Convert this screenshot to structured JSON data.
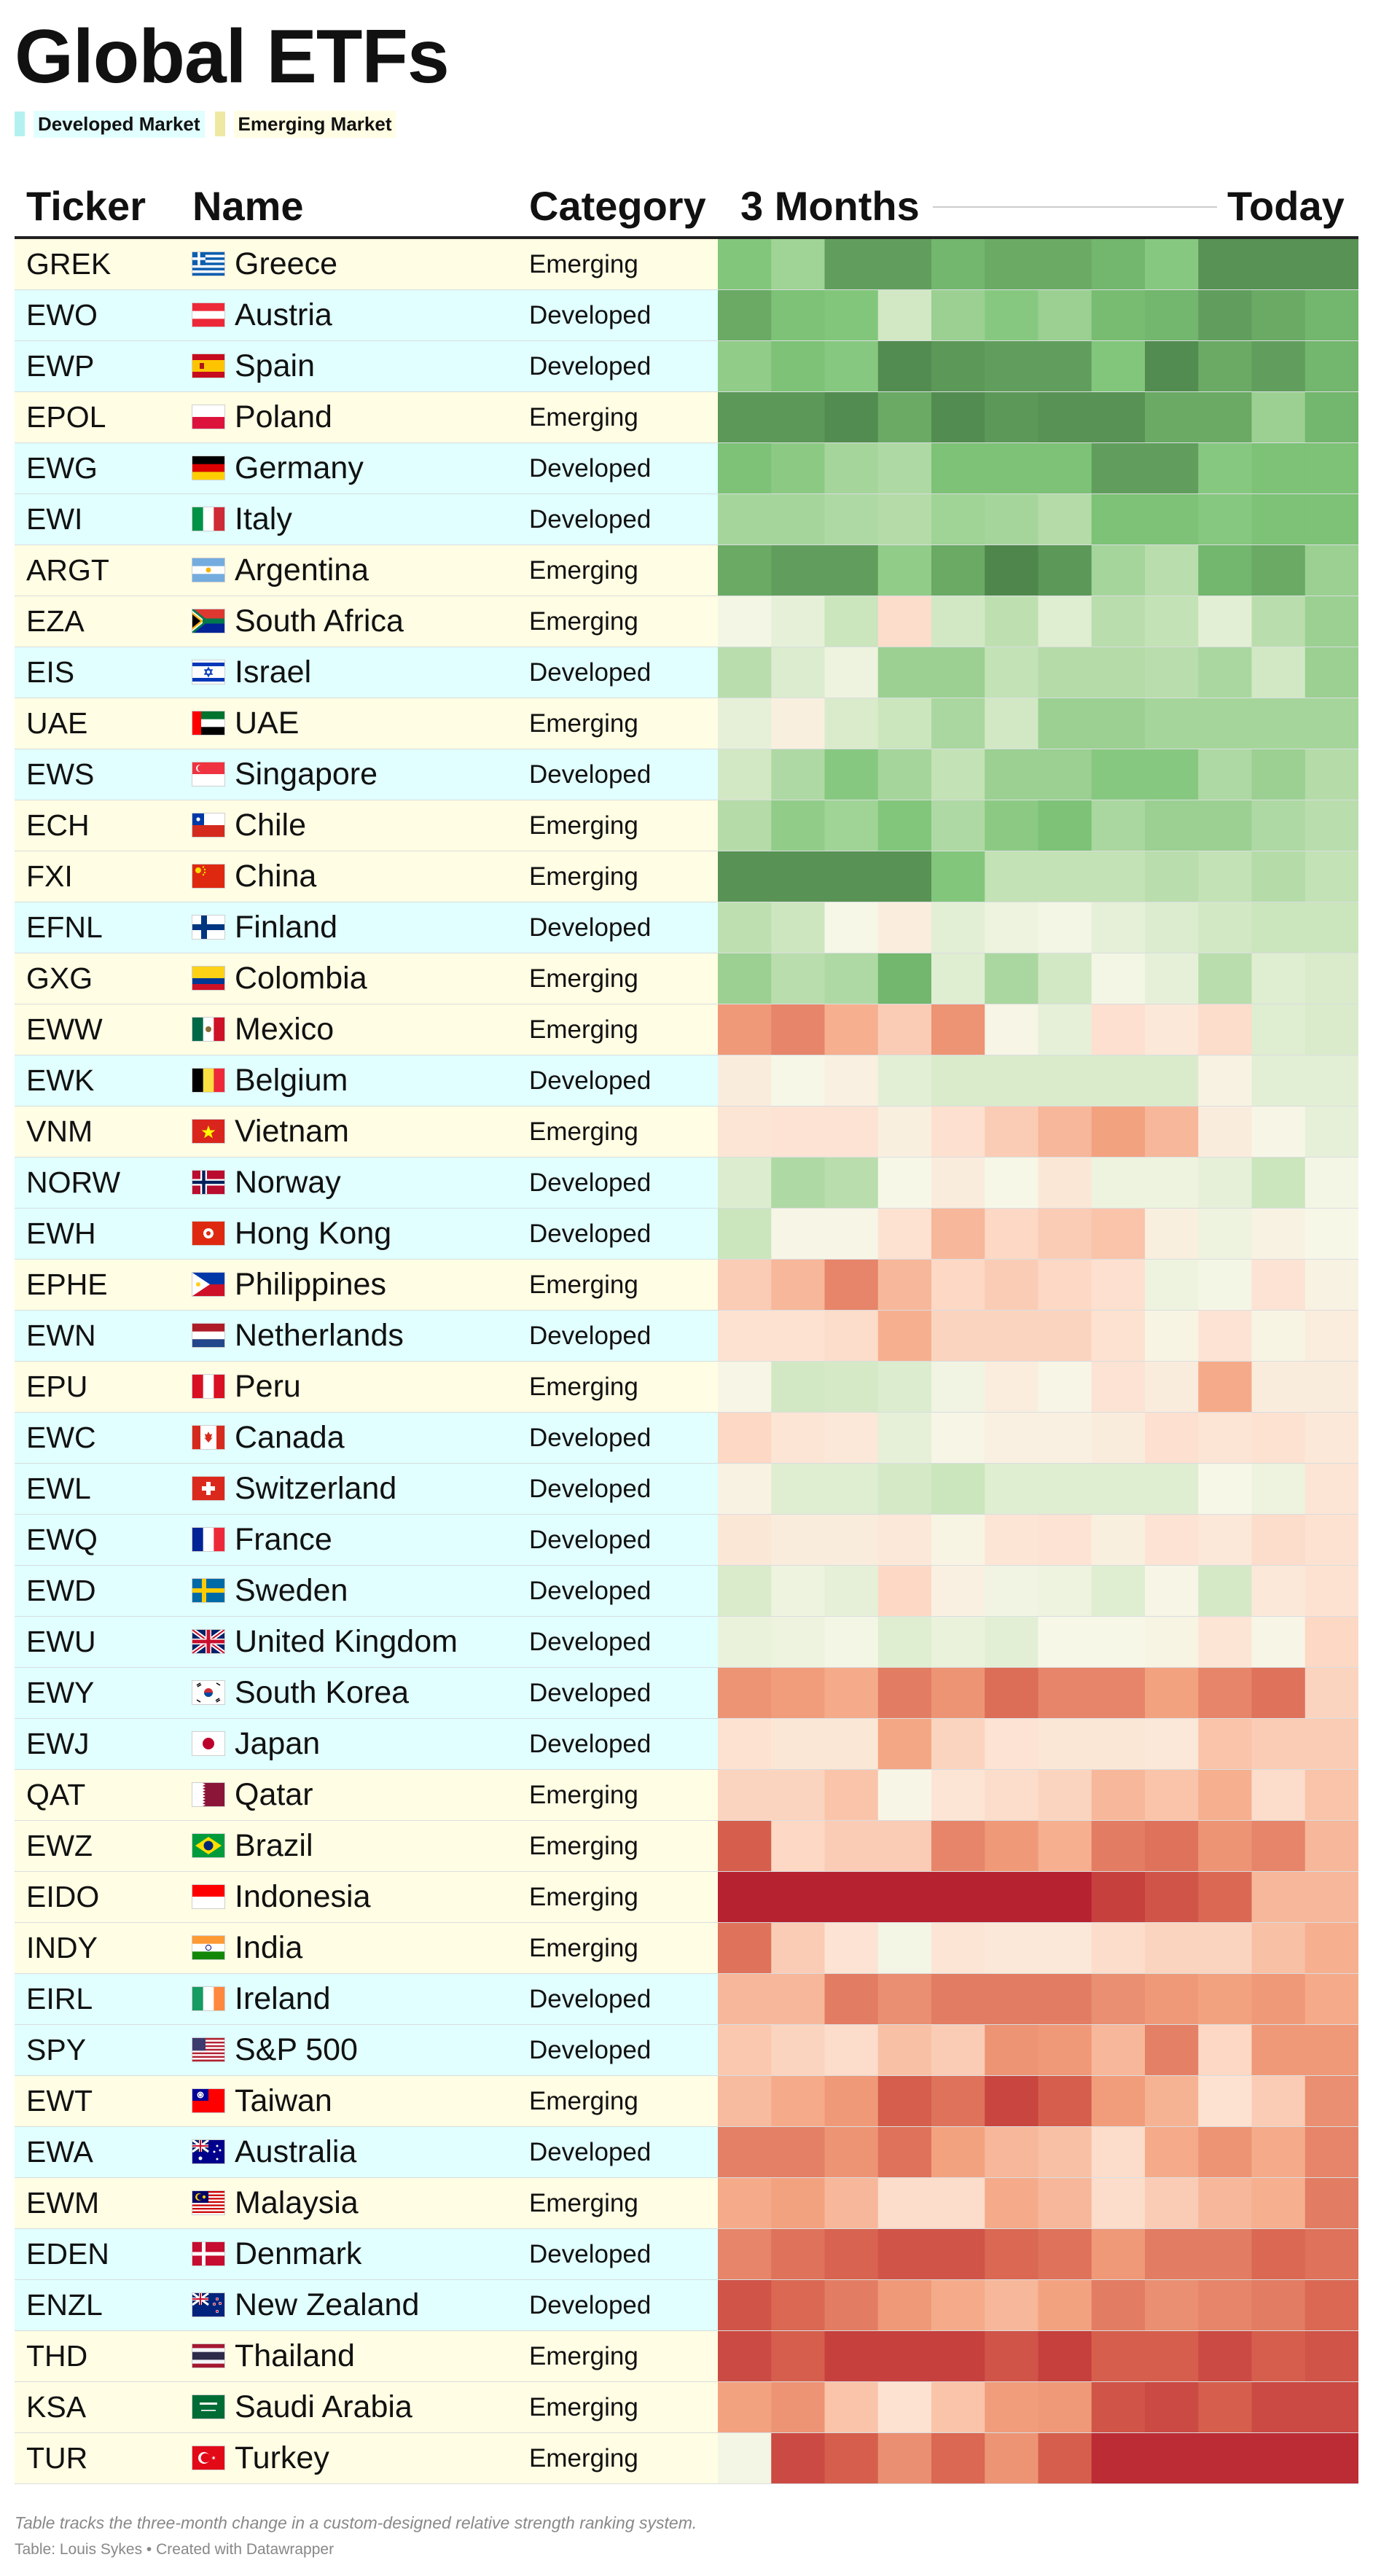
{
  "title": "Global ETFs",
  "legend": [
    {
      "label": "Developed Market",
      "color": "#b3f1f1",
      "bg": "#e0fffe"
    },
    {
      "label": "Emerging Market",
      "color": "#efe8a2",
      "bg": "#fffde3"
    }
  ],
  "header": {
    "ticker": "Ticker",
    "name": "Name",
    "category": "Category",
    "from": "3 Months",
    "to": "Today"
  },
  "footer": {
    "note": "Table tracks the three-month change in a custom-designed relative strength ranking system.",
    "credit": "Table: Louis Sykes • Created with Datawrapper"
  },
  "colors": {
    "developed_row": "#e0fffe",
    "emerging_row": "#fffde3",
    "scale": [
      "#b2182b",
      "#d6604d",
      "#f4a582",
      "#fde0cf",
      "#f7f7e8",
      "#c6e3b8",
      "#7ec478",
      "#3c6e3a"
    ]
  },
  "chart_data": {
    "type": "heatmap",
    "x_start_label": "3 Months",
    "x_end_label": "Today",
    "scale_range": [
      0,
      100
    ],
    "series": [
      {
        "ticker": "GREK",
        "name": "Greece",
        "category": "Emerging",
        "flag": "greece-flag",
        "values": [
          85,
          79,
          92,
          92,
          88,
          90,
          90,
          88,
          84,
          94,
          94,
          94
        ]
      },
      {
        "ticker": "EWO",
        "name": "Austria",
        "category": "Developed",
        "flag": "austria-flag",
        "values": [
          90,
          86,
          85,
          68,
          80,
          84,
          80,
          87,
          88,
          92,
          90,
          88
        ]
      },
      {
        "ticker": "EWP",
        "name": "Spain",
        "category": "Developed",
        "flag": "spain-flag",
        "values": [
          82,
          86,
          84,
          95,
          93,
          92,
          92,
          85,
          95,
          90,
          92,
          88
        ]
      },
      {
        "ticker": "EPOL",
        "name": "Poland",
        "category": "Emerging",
        "flag": "poland-flag",
        "values": [
          93,
          93,
          95,
          90,
          95,
          93,
          94,
          94,
          90,
          90,
          80,
          88
        ]
      },
      {
        "ticker": "EWG",
        "name": "Germany",
        "category": "Developed",
        "flag": "germany-flag",
        "values": [
          86,
          83,
          78,
          76,
          86,
          86,
          86,
          92,
          92,
          84,
          86,
          86
        ]
      },
      {
        "ticker": "EWI",
        "name": "Italy",
        "category": "Developed",
        "flag": "italy-flag",
        "values": [
          78,
          78,
          76,
          75,
          79,
          78,
          75,
          86,
          86,
          84,
          86,
          86
        ]
      },
      {
        "ticker": "ARGT",
        "name": "Argentina",
        "category": "Emerging",
        "flag": "argentina-flag",
        "values": [
          90,
          92,
          92,
          82,
          90,
          96,
          93,
          78,
          74,
          88,
          90,
          80
        ]
      },
      {
        "ticker": "EZA",
        "name": "South Africa",
        "category": "Emerging",
        "flag": "south-africa-flag",
        "values": [
          58,
          62,
          70,
          42,
          68,
          73,
          64,
          74,
          72,
          63,
          74,
          80
        ]
      },
      {
        "ticker": "EIS",
        "name": "Israel",
        "category": "Developed",
        "flag": "israel-flag",
        "values": [
          74,
          65,
          60,
          80,
          80,
          72,
          75,
          75,
          74,
          77,
          68,
          80
        ]
      },
      {
        "ticker": "UAE",
        "name": "UAE",
        "category": "Emerging",
        "flag": "uae-flag",
        "values": [
          62,
          52,
          66,
          70,
          77,
          68,
          80,
          80,
          78,
          78,
          78,
          78
        ]
      },
      {
        "ticker": "EWS",
        "name": "Singapore",
        "category": "Developed",
        "flag": "singapore-flag",
        "values": [
          68,
          76,
          84,
          78,
          72,
          80,
          80,
          84,
          84,
          76,
          80,
          75
        ]
      },
      {
        "ticker": "ECH",
        "name": "Chile",
        "category": "Emerging",
        "flag": "chile-flag",
        "values": [
          75,
          82,
          79,
          85,
          76,
          83,
          86,
          77,
          80,
          80,
          76,
          74
        ]
      },
      {
        "ticker": "FXI",
        "name": "China",
        "category": "Emerging",
        "flag": "china-flag",
        "values": [
          94,
          94,
          94,
          94,
          85,
          72,
          72,
          72,
          74,
          72,
          75,
          72
        ]
      },
      {
        "ticker": "EFNL",
        "name": "Finland",
        "category": "Developed",
        "flag": "finland-flag",
        "values": [
          73,
          69,
          57,
          51,
          63,
          60,
          58,
          62,
          65,
          68,
          70,
          70
        ]
      },
      {
        "ticker": "GXG",
        "name": "Colombia",
        "category": "Emerging",
        "flag": "colombia-flag",
        "values": [
          80,
          74,
          76,
          88,
          64,
          77,
          68,
          58,
          62,
          74,
          64,
          66
        ]
      },
      {
        "ticker": "EWW",
        "name": "Mexico",
        "category": "Emerging",
        "flag": "mexico-flag",
        "values": [
          26,
          22,
          31,
          38,
          25,
          56,
          62,
          43,
          48,
          42,
          64,
          66
        ]
      },
      {
        "ticker": "EWK",
        "name": "Belgium",
        "category": "Developed",
        "flag": "belgium-flag",
        "values": [
          50,
          57,
          53,
          63,
          66,
          66,
          66,
          66,
          66,
          54,
          63,
          63
        ]
      },
      {
        "ticker": "VNM",
        "name": "Vietnam",
        "category": "Emerging",
        "flag": "vietnam-flag",
        "values": [
          46,
          45,
          45,
          52,
          43,
          38,
          33,
          28,
          33,
          50,
          56,
          62
        ]
      },
      {
        "ticker": "NORW",
        "name": "Norway",
        "category": "Developed",
        "flag": "norway-flag",
        "values": [
          65,
          76,
          74,
          57,
          50,
          57,
          47,
          60,
          60,
          62,
          70,
          58
        ]
      },
      {
        "ticker": "EWH",
        "name": "Hong Kong",
        "category": "Developed",
        "flag": "hong-kong-flag",
        "values": [
          70,
          56,
          56,
          44,
          33,
          41,
          38,
          36,
          52,
          60,
          54,
          57
        ]
      },
      {
        "ticker": "EPHE",
        "name": "Philippines",
        "category": "Emerging",
        "flag": "philippines-flag",
        "values": [
          38,
          33,
          22,
          33,
          41,
          38,
          41,
          43,
          60,
          58,
          45,
          54
        ]
      },
      {
        "ticker": "EWN",
        "name": "Netherlands",
        "category": "Developed",
        "flag": "netherlands-flag",
        "values": [
          44,
          44,
          42,
          31,
          40,
          40,
          40,
          44,
          55,
          45,
          55,
          51
        ]
      },
      {
        "ticker": "EPU",
        "name": "Peru",
        "category": "Emerging",
        "flag": "peru-flag",
        "values": [
          56,
          68,
          67,
          65,
          59,
          51,
          56,
          45,
          50,
          30,
          50,
          50
        ]
      },
      {
        "ticker": "EWC",
        "name": "Canada",
        "category": "Developed",
        "flag": "canada-flag",
        "values": [
          41,
          46,
          48,
          62,
          56,
          53,
          53,
          50,
          43,
          46,
          44,
          48
        ]
      },
      {
        "ticker": "EWL",
        "name": "Switzerland",
        "category": "Developed",
        "flag": "switzerland-flag",
        "values": [
          54,
          64,
          64,
          67,
          70,
          64,
          64,
          64,
          64,
          57,
          60,
          46
        ]
      },
      {
        "ticker": "EWQ",
        "name": "France",
        "category": "Developed",
        "flag": "france-flag",
        "values": [
          47,
          50,
          50,
          48,
          55,
          46,
          45,
          52,
          45,
          48,
          42,
          44
        ]
      },
      {
        "ticker": "EWD",
        "name": "Sweden",
        "category": "Developed",
        "flag": "sweden-flag",
        "values": [
          66,
          60,
          62,
          41,
          53,
          59,
          60,
          64,
          56,
          67,
          48,
          44
        ]
      },
      {
        "ticker": "EWU",
        "name": "United Kingdom",
        "category": "Developed",
        "flag": "united-kingdom-flag",
        "values": [
          61,
          60,
          58,
          64,
          61,
          63,
          57,
          57,
          55,
          46,
          56,
          41
        ]
      },
      {
        "ticker": "EWY",
        "name": "South Korea",
        "category": "Developed",
        "flag": "south-korea-flag",
        "values": [
          25,
          27,
          30,
          20,
          25,
          17,
          22,
          22,
          28,
          22,
          18,
          40
        ]
      },
      {
        "ticker": "EWJ",
        "name": "Japan",
        "category": "Developed",
        "flag": "japan-flag",
        "values": [
          44,
          47,
          47,
          29,
          40,
          45,
          47,
          47,
          48,
          36,
          38,
          38
        ]
      },
      {
        "ticker": "QAT",
        "name": "Qatar",
        "category": "Emerging",
        "flag": "qatar-flag",
        "values": [
          40,
          40,
          36,
          56,
          46,
          42,
          40,
          33,
          36,
          31,
          42,
          36
        ]
      },
      {
        "ticker": "EWZ",
        "name": "Brazil",
        "category": "Emerging",
        "flag": "brazil-flag",
        "values": [
          14,
          41,
          38,
          38,
          22,
          26,
          31,
          20,
          18,
          25,
          22,
          33
        ]
      },
      {
        "ticker": "EIDO",
        "name": "Indonesia",
        "category": "Emerging",
        "flag": "indonesia-flag",
        "values": [
          2,
          2,
          2,
          2,
          2,
          2,
          2,
          8,
          12,
          16,
          33,
          33
        ]
      },
      {
        "ticker": "INDY",
        "name": "India",
        "category": "Emerging",
        "flag": "india-flag",
        "values": [
          18,
          38,
          45,
          58,
          46,
          48,
          48,
          42,
          40,
          40,
          35,
          31
        ]
      },
      {
        "ticker": "EIRL",
        "name": "Ireland",
        "category": "Developed",
        "flag": "ireland-flag",
        "values": [
          33,
          33,
          20,
          24,
          20,
          20,
          20,
          24,
          26,
          28,
          26,
          30
        ]
      },
      {
        "ticker": "SPY",
        "name": "S&P 500",
        "category": "Developed",
        "flag": "usa-flag",
        "values": [
          37,
          40,
          42,
          35,
          38,
          25,
          26,
          33,
          21,
          41,
          26,
          26
        ]
      },
      {
        "ticker": "EWT",
        "name": "Taiwan",
        "category": "Emerging",
        "flag": "taiwan-flag",
        "values": [
          34,
          30,
          26,
          14,
          18,
          9,
          14,
          27,
          32,
          44,
          38,
          24
        ]
      },
      {
        "ticker": "EWA",
        "name": "Australia",
        "category": "Developed",
        "flag": "australia-flag",
        "values": [
          21,
          21,
          25,
          18,
          28,
          33,
          35,
          42,
          30,
          25,
          30,
          22
        ]
      },
      {
        "ticker": "EWM",
        "name": "Malaysia",
        "category": "Emerging",
        "flag": "malaysia-flag",
        "values": [
          30,
          28,
          33,
          42,
          42,
          30,
          33,
          42,
          38,
          33,
          31,
          20
        ]
      },
      {
        "ticker": "EDEN",
        "name": "Denmark",
        "category": "Developed",
        "flag": "denmark-flag",
        "values": [
          22,
          18,
          15,
          12,
          12,
          16,
          18,
          26,
          20,
          20,
          16,
          18
        ]
      },
      {
        "ticker": "ENZL",
        "name": "New Zealand",
        "category": "Developed",
        "flag": "new-zealand-flag",
        "values": [
          12,
          16,
          20,
          26,
          30,
          33,
          28,
          20,
          24,
          22,
          20,
          16
        ]
      },
      {
        "ticker": "THD",
        "name": "Thailand",
        "category": "Emerging",
        "flag": "thailand-flag",
        "values": [
          10,
          14,
          8,
          8,
          8,
          12,
          8,
          14,
          14,
          10,
          14,
          12
        ]
      },
      {
        "ticker": "KSA",
        "name": "Saudi Arabia",
        "category": "Emerging",
        "flag": "saudi-arabia-flag",
        "values": [
          28,
          25,
          36,
          44,
          36,
          27,
          26,
          12,
          10,
          14,
          10,
          10
        ]
      },
      {
        "ticker": "TUR",
        "name": "Turkey",
        "category": "Emerging",
        "flag": "turkey-flag",
        "values": [
          58,
          10,
          14,
          24,
          16,
          25,
          14,
          4,
          4,
          4,
          4,
          4
        ]
      }
    ]
  }
}
